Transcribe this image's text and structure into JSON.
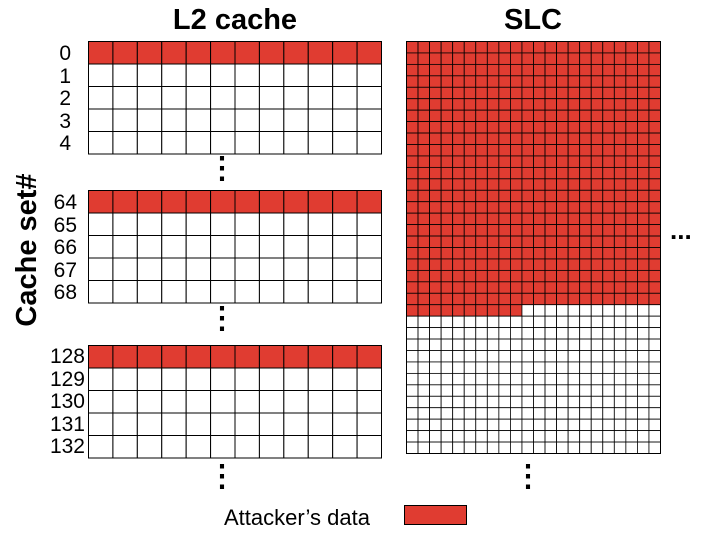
{
  "titles": {
    "l2": "L2 cache",
    "slc": "SLC"
  },
  "ylabel": "Cache set#",
  "l2_groups": [
    {
      "sets": [
        "0",
        "1",
        "2",
        "3",
        "4"
      ]
    },
    {
      "sets": [
        "64",
        "65",
        "66",
        "67",
        "68"
      ]
    },
    {
      "sets": [
        "128",
        "129",
        "130",
        "131",
        "132"
      ]
    }
  ],
  "l2_ways": 12,
  "slc": {
    "cols": 22,
    "rows": 36,
    "filled_full_rows": 23,
    "partial_row_filled_cells": 10
  },
  "ellipsis": {
    "vertical": "⋮",
    "horizontal": "..."
  },
  "legend": {
    "label": "Attacker’s data"
  },
  "colors": {
    "attacker": "#E03C31",
    "empty": "#ffffff",
    "line": "#000000"
  }
}
